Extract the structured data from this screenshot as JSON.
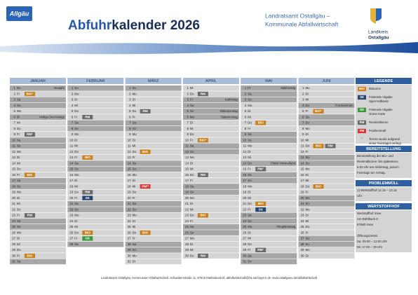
{
  "header": {
    "logo": "Allgäu",
    "title_bold": "Abfuhr",
    "title_rest": "kalender 2026",
    "org_lines": [
      "Landratsamt Ostallgäu –",
      "Kommunale Abfallwirtschaft"
    ],
    "district_lines": [
      "Landkreis",
      "Ostallgäu"
    ]
  },
  "months": [
    {
      "name": "JANUAR",
      "days": [
        {
          "d": 1,
          "wd": "Do",
          "note": "Neujahr",
          "shade": true
        },
        {
          "d": 2,
          "wd": "Fr",
          "tag": "BIO°"
        },
        {
          "d": 3,
          "wd": "Sa",
          "shade": true
        },
        {
          "d": 4,
          "wd": "So",
          "shade": true
        },
        {
          "d": 5,
          "wd": "Mo"
        },
        {
          "d": 6,
          "wd": "Di",
          "note": "Heilige Drei Könige",
          "shade": true
        },
        {
          "d": 7,
          "wd": "Mi"
        },
        {
          "d": 8,
          "wd": "Do"
        },
        {
          "d": 9,
          "wd": "Fr",
          "tag": "RM°"
        },
        {
          "d": 10,
          "wd": "Sa",
          "shade": true
        },
        {
          "d": 11,
          "wd": "So",
          "shade": true
        },
        {
          "d": 12,
          "wd": "Mo"
        },
        {
          "d": 13,
          "wd": "Di"
        },
        {
          "d": 14,
          "wd": "Mi"
        },
        {
          "d": 15,
          "wd": "Do"
        },
        {
          "d": 16,
          "wd": "Fr",
          "tag": "BIO"
        },
        {
          "d": 17,
          "wd": "Sa",
          "shade": true
        },
        {
          "d": 18,
          "wd": "So",
          "shade": true
        },
        {
          "d": 19,
          "wd": "Mo"
        },
        {
          "d": 20,
          "wd": "Di"
        },
        {
          "d": 21,
          "wd": "Mi"
        },
        {
          "d": 22,
          "wd": "Do"
        },
        {
          "d": 23,
          "wd": "Fr",
          "tag": "RM"
        },
        {
          "d": 24,
          "wd": "Sa",
          "shade": true
        },
        {
          "d": 25,
          "wd": "So",
          "shade": true
        },
        {
          "d": 26,
          "wd": "Mo"
        },
        {
          "d": 27,
          "wd": "Di"
        },
        {
          "d": 28,
          "wd": "Mi"
        },
        {
          "d": 29,
          "wd": "Do"
        },
        {
          "d": 30,
          "wd": "Fr",
          "tag": "BIO"
        },
        {
          "d": 31,
          "wd": "Sa",
          "shade": true
        }
      ]
    },
    {
      "name": "FEBRUAR",
      "days": [
        {
          "d": 1,
          "wd": "So",
          "shade": true
        },
        {
          "d": 2,
          "wd": "Mo"
        },
        {
          "d": 3,
          "wd": "Di"
        },
        {
          "d": 4,
          "wd": "Mi"
        },
        {
          "d": 5,
          "wd": "Do"
        },
        {
          "d": 6,
          "wd": "Fr",
          "tag": "RM"
        },
        {
          "d": 7,
          "wd": "Sa",
          "shade": true
        },
        {
          "d": 8,
          "wd": "So",
          "shade": true
        },
        {
          "d": 9,
          "wd": "Mo"
        },
        {
          "d": 10,
          "wd": "Di"
        },
        {
          "d": 11,
          "wd": "Mi"
        },
        {
          "d": 12,
          "wd": "Do"
        },
        {
          "d": 13,
          "wd": "Fr",
          "tag": "BIO"
        },
        {
          "d": 14,
          "wd": "Sa",
          "shade": true
        },
        {
          "d": 15,
          "wd": "So",
          "shade": true
        },
        {
          "d": 16,
          "wd": "Mo"
        },
        {
          "d": 17,
          "wd": "Di"
        },
        {
          "d": 18,
          "wd": "Mi"
        },
        {
          "d": 19,
          "wd": "Do",
          "tag": "RM"
        },
        {
          "d": 20,
          "wd": "Fr",
          "tag": "SK"
        },
        {
          "d": 21,
          "wd": "Sa",
          "shade": true
        },
        {
          "d": 22,
          "wd": "So",
          "shade": true
        },
        {
          "d": 23,
          "wd": "Mo"
        },
        {
          "d": 24,
          "wd": "Di"
        },
        {
          "d": 25,
          "wd": "Mi"
        },
        {
          "d": 26,
          "wd": "Do",
          "tag": "BIO"
        },
        {
          "d": 27,
          "wd": "Fr",
          "tag": "GK"
        },
        {
          "d": 28,
          "wd": "Sa",
          "shade": true
        }
      ]
    },
    {
      "name": "MÄRZ",
      "days": [
        {
          "d": 1,
          "wd": "So",
          "shade": true
        },
        {
          "d": 2,
          "wd": "Mo"
        },
        {
          "d": 3,
          "wd": "Di"
        },
        {
          "d": 4,
          "wd": "Mi"
        },
        {
          "d": 5,
          "wd": "Do",
          "tag": "RM"
        },
        {
          "d": 6,
          "wd": "Fr"
        },
        {
          "d": 7,
          "wd": "Sa",
          "shade": true
        },
        {
          "d": 8,
          "wd": "So",
          "shade": true
        },
        {
          "d": 9,
          "wd": "Mo"
        },
        {
          "d": 10,
          "wd": "Di"
        },
        {
          "d": 11,
          "wd": "Mi"
        },
        {
          "d": 12,
          "wd": "Do",
          "tag": "BIO"
        },
        {
          "d": 13,
          "wd": "Fr"
        },
        {
          "d": 14,
          "wd": "Sa",
          "shade": true
        },
        {
          "d": 15,
          "wd": "So",
          "shade": true
        },
        {
          "d": 16,
          "wd": "Mo"
        },
        {
          "d": 17,
          "wd": "Di"
        },
        {
          "d": 18,
          "wd": "Mi",
          "tag": "PM¹⁾"
        },
        {
          "d": 19,
          "wd": "Do"
        },
        {
          "d": 20,
          "wd": "Fr"
        },
        {
          "d": 21,
          "wd": "Sa",
          "shade": true
        },
        {
          "d": 22,
          "wd": "So",
          "shade": true
        },
        {
          "d": 23,
          "wd": "Mo"
        },
        {
          "d": 24,
          "wd": "Di"
        },
        {
          "d": 25,
          "wd": "Mi"
        },
        {
          "d": 26,
          "wd": "Do",
          "tag": "BIO"
        },
        {
          "d": 27,
          "wd": "Fr"
        },
        {
          "d": 28,
          "wd": "Sa",
          "shade": true
        },
        {
          "d": 29,
          "wd": "So",
          "shade": true
        },
        {
          "d": 30,
          "wd": "Mo"
        },
        {
          "d": 31,
          "wd": "Di"
        }
      ]
    },
    {
      "name": "APRIL",
      "days": [
        {
          "d": 1,
          "wd": "Mi"
        },
        {
          "d": 2,
          "wd": "Do",
          "tag": "RM"
        },
        {
          "d": 3,
          "wd": "Fr",
          "note": "Karfreitag",
          "shade": true
        },
        {
          "d": 4,
          "wd": "Sa",
          "shade": true
        },
        {
          "d": 5,
          "wd": "So",
          "note": "Ostersonntag",
          "shade": true
        },
        {
          "d": 6,
          "wd": "Mo",
          "note": "Ostermontag",
          "shade": true
        },
        {
          "d": 7,
          "wd": "Di"
        },
        {
          "d": 8,
          "wd": "Mi"
        },
        {
          "d": 9,
          "wd": "Do"
        },
        {
          "d": 10,
          "wd": "Fr",
          "tag": "BIO°"
        },
        {
          "d": 11,
          "wd": "Sa",
          "shade": true
        },
        {
          "d": 12,
          "wd": "So",
          "shade": true
        },
        {
          "d": 13,
          "wd": "Mo"
        },
        {
          "d": 14,
          "wd": "Di"
        },
        {
          "d": 15,
          "wd": "Mi"
        },
        {
          "d": 16,
          "wd": "Do",
          "tag": "RM"
        },
        {
          "d": 17,
          "wd": "Fr"
        },
        {
          "d": 18,
          "wd": "Sa",
          "shade": true
        },
        {
          "d": 19,
          "wd": "So",
          "shade": true
        },
        {
          "d": 20,
          "wd": "Mo"
        },
        {
          "d": 21,
          "wd": "Di"
        },
        {
          "d": 22,
          "wd": "Mi"
        },
        {
          "d": 23,
          "wd": "Do",
          "tag": "BIO"
        },
        {
          "d": 24,
          "wd": "Fr"
        },
        {
          "d": 25,
          "wd": "Sa",
          "shade": true
        },
        {
          "d": 26,
          "wd": "So",
          "shade": true
        },
        {
          "d": 27,
          "wd": "Mo"
        },
        {
          "d": 28,
          "wd": "Di"
        },
        {
          "d": 29,
          "wd": "Mi"
        },
        {
          "d": 30,
          "wd": "Do",
          "tag": "RM"
        }
      ]
    },
    {
      "name": "MAI",
      "days": [
        {
          "d": 1,
          "wd": "Fr",
          "note": "Maifeiertag",
          "shade": true
        },
        {
          "d": 2,
          "wd": "Sa",
          "shade": true
        },
        {
          "d": 3,
          "wd": "So",
          "shade": true
        },
        {
          "d": 4,
          "wd": "Mo"
        },
        {
          "d": 5,
          "wd": "Di"
        },
        {
          "d": 6,
          "wd": "Mi"
        },
        {
          "d": 7,
          "wd": "Do",
          "tag": "BIO"
        },
        {
          "d": 8,
          "wd": "Fr"
        },
        {
          "d": 9,
          "wd": "Sa",
          "shade": true
        },
        {
          "d": 10,
          "wd": "So",
          "shade": true
        },
        {
          "d": 11,
          "wd": "Mo"
        },
        {
          "d": 12,
          "wd": "Di"
        },
        {
          "d": 13,
          "wd": "Mi"
        },
        {
          "d": 14,
          "wd": "Do",
          "note": "Christi Himmelfahrt",
          "shade": true
        },
        {
          "d": 15,
          "wd": "Fr",
          "tag": "RM°"
        },
        {
          "d": 16,
          "wd": "Sa",
          "shade": true
        },
        {
          "d": 17,
          "wd": "So",
          "shade": true
        },
        {
          "d": 18,
          "wd": "Mo"
        },
        {
          "d": 19,
          "wd": "Di"
        },
        {
          "d": 20,
          "wd": "Mi"
        },
        {
          "d": 21,
          "wd": "Do",
          "tag": "BIO"
        },
        {
          "d": 22,
          "wd": "Fr",
          "tag": "SK"
        },
        {
          "d": 23,
          "wd": "Sa",
          "shade": true
        },
        {
          "d": 24,
          "wd": "So",
          "shade": true
        },
        {
          "d": 25,
          "wd": "Mo",
          "note": "Pfingstmontag",
          "shade": true
        },
        {
          "d": 26,
          "wd": "Di"
        },
        {
          "d": 27,
          "wd": "Mi"
        },
        {
          "d": 28,
          "wd": "Do"
        },
        {
          "d": 29,
          "wd": "Fr",
          "tag": "RM°"
        },
        {
          "d": 30,
          "wd": "Sa",
          "shade": true
        },
        {
          "d": 31,
          "wd": "So",
          "shade": true
        }
      ]
    },
    {
      "name": "JUNI",
      "days": [
        {
          "d": 1,
          "wd": "Mo"
        },
        {
          "d": 2,
          "wd": "Di"
        },
        {
          "d": 3,
          "wd": "Mi"
        },
        {
          "d": 4,
          "wd": "Do",
          "note": "Fronleichnam",
          "shade": true
        },
        {
          "d": 5,
          "wd": "Fr",
          "tag": "BIO°"
        },
        {
          "d": 6,
          "wd": "Sa",
          "shade": true
        },
        {
          "d": 7,
          "wd": "So",
          "shade": true
        },
        {
          "d": 8,
          "wd": "Mo"
        },
        {
          "d": 9,
          "wd": "Di"
        },
        {
          "d": 10,
          "wd": "Mi"
        },
        {
          "d": 11,
          "wd": "Do",
          "tag": "BIO",
          "tag2": "RM"
        },
        {
          "d": 12,
          "wd": "Fr"
        },
        {
          "d": 13,
          "wd": "Sa",
          "shade": true
        },
        {
          "d": 14,
          "wd": "So",
          "shade": true
        },
        {
          "d": 15,
          "wd": "Mo"
        },
        {
          "d": 16,
          "wd": "Di"
        },
        {
          "d": 17,
          "wd": "Mi"
        },
        {
          "d": 18,
          "wd": "Do",
          "tag": "BIO"
        },
        {
          "d": 19,
          "wd": "Fr"
        },
        {
          "d": 20,
          "wd": "Sa",
          "shade": true
        },
        {
          "d": 21,
          "wd": "So",
          "shade": true
        },
        {
          "d": 22,
          "wd": "Mo"
        },
        {
          "d": 23,
          "wd": "Di"
        },
        {
          "d": 24,
          "wd": "Mi"
        },
        {
          "d": 25,
          "wd": "Do"
        },
        {
          "d": 26,
          "wd": "Fr"
        },
        {
          "d": 27,
          "wd": "Sa",
          "shade": true
        },
        {
          "d": 28,
          "wd": "So",
          "shade": true
        },
        {
          "d": 29,
          "wd": "Mo"
        },
        {
          "d": 30,
          "wd": "Di"
        }
      ]
    }
  ],
  "legend": {
    "title": "LEGENDE",
    "items": [
      {
        "tag": "BIO",
        "color": "#c8801e",
        "lines": [
          "Biotonne"
        ]
      },
      {
        "tag": "SK",
        "color": "#24466e",
        "lines": [
          "Fristende Abgabe",
          "Sperrmüllkarte"
        ]
      },
      {
        "tag": "GK",
        "color": "#3a9a3a",
        "lines": [
          "Fristende Abgabe",
          "Grüne Karte"
        ]
      },
      {
        "tag": "RM",
        "color": "#6b6b6b",
        "lines": [
          "Restmülltonne"
        ]
      },
      {
        "tag": "PM",
        "color": "#d9383a",
        "lines": [
          "Problemmüll"
        ]
      },
      {
        "tag": "°",
        "lines": [
          "Termin wurde aufgrund",
          "eines Feiertages verlegt"
        ]
      }
    ]
  },
  "info": [
    {
      "title": "BEREITSTELLUNG",
      "lines": [
        "Bereitstellung der Bio- und",
        "Restmülltonne: bis spätestens",
        "6.00 Uhr am Abfuhrtag, jedoch",
        "Feiertags am Vortag."
      ]
    },
    {
      "title": "PROBLEMMÜLL",
      "lines": [
        "1)  Wertstoffhof 12.15 – 13.15",
        "     Uhr"
      ]
    },
    {
      "title": "WERTSTOFFHOF",
      "lines": [
        "Wertstoffhof Irsee",
        "Am Bühlbach 6",
        "87660 Irsee",
        "",
        "Öffnungszeiten",
        "Sa: 09.00 – 12.00 Uhr",
        "Mi: 17.00 – 19 Uhr"
      ]
    }
  ],
  "footer": "Landratsamt Ostallgäu, Kommunale Abfallwirtschaft, Schwabenstraße 11, 87616 Marktoberdorf, abfallwirtschaft@lra-oal.bayern.de, www.ostallgaeu.de/abfallwirtschaft"
}
